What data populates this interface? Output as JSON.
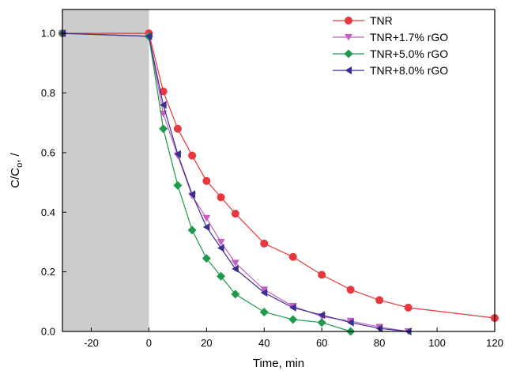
{
  "chart_data": {
    "type": "line",
    "xlabel": "Time, min",
    "ylabel": "C/C",
    "ylabel_sub": "o",
    "ylabel_suffix": ", /",
    "xlim": [
      -30,
      120
    ],
    "ylim": [
      0,
      1.08
    ],
    "xticks": [
      -20,
      0,
      20,
      40,
      60,
      80,
      100,
      120
    ],
    "yticks": [
      0.0,
      0.2,
      0.4,
      0.6,
      0.8,
      1.0
    ],
    "xtick_labels": [
      "-20",
      "0",
      "20",
      "40",
      "60",
      "80",
      "100",
      "120"
    ],
    "ytick_labels": [
      "0.0",
      "0.2",
      "0.4",
      "0.6",
      "0.8",
      "1.0"
    ],
    "shaded_region": {
      "x_from": -30,
      "x_to": 0,
      "color": "#cccccc"
    },
    "legend_position": "top-right",
    "grid": false,
    "series": [
      {
        "name": "TNR",
        "color": "#e8383d",
        "marker": "circle",
        "x": [
          -30,
          0,
          5,
          10,
          15,
          20,
          25,
          30,
          40,
          50,
          60,
          70,
          80,
          90,
          120
        ],
        "y": [
          1.0,
          1.0,
          0.805,
          0.68,
          0.59,
          0.505,
          0.45,
          0.395,
          0.295,
          0.25,
          0.19,
          0.14,
          0.105,
          0.08,
          0.045
        ]
      },
      {
        "name": "TNR+1.7% rGO",
        "color": "#c45fc4",
        "marker": "triangle-down",
        "x": [
          -30,
          0,
          5,
          10,
          15,
          20,
          25,
          30,
          40,
          50,
          60,
          70,
          80,
          90
        ],
        "y": [
          1.0,
          0.99,
          0.73,
          0.59,
          0.455,
          0.38,
          0.3,
          0.23,
          0.14,
          0.085,
          0.05,
          0.035,
          0.015,
          0.0
        ]
      },
      {
        "name": "TNR+5.0% rGO",
        "color": "#1e9a4a",
        "marker": "diamond",
        "x": [
          -30,
          0,
          5,
          10,
          15,
          20,
          25,
          30,
          40,
          50,
          60,
          70
        ],
        "y": [
          1.0,
          0.99,
          0.68,
          0.49,
          0.34,
          0.245,
          0.185,
          0.125,
          0.065,
          0.04,
          0.03,
          0.0
        ]
      },
      {
        "name": "TNR+8.0% rGO",
        "color": "#3a2e8e",
        "marker": "triangle-left",
        "x": [
          -30,
          0,
          5,
          10,
          15,
          20,
          25,
          30,
          40,
          50,
          60,
          70,
          80,
          90
        ],
        "y": [
          1.0,
          0.99,
          0.76,
          0.595,
          0.46,
          0.35,
          0.28,
          0.21,
          0.13,
          0.08,
          0.055,
          0.03,
          0.01,
          0.0
        ]
      }
    ]
  }
}
